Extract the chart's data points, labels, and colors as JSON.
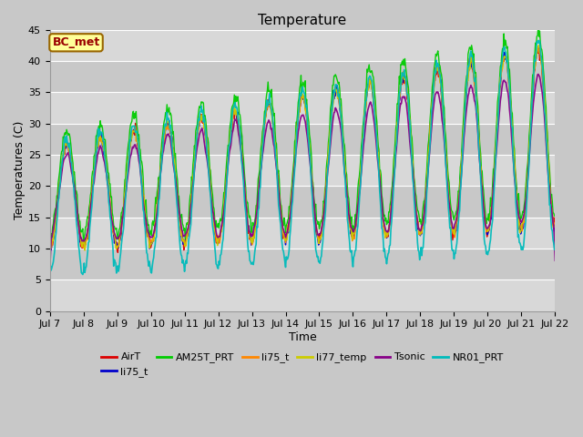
{
  "title": "Temperature",
  "xlabel": "Time",
  "ylabel": "Temperatures (C)",
  "annotation": "BC_met",
  "ylim": [
    0,
    45
  ],
  "x_tick_labels": [
    "Jul 7",
    "Jul 8",
    "Jul 9",
    "Jul 10",
    "Jul 11",
    "Jul 12",
    "Jul 13",
    "Jul 14",
    "Jul 15",
    "Jul 16",
    "Jul 17",
    "Jul 18",
    "Jul 19",
    "Jul 20",
    "Jul 21",
    "Jul 22"
  ],
  "x_tick_positions": [
    0,
    1,
    2,
    3,
    4,
    5,
    6,
    7,
    8,
    9,
    10,
    11,
    12,
    13,
    14,
    15
  ],
  "series": [
    {
      "label": "AirT",
      "color": "#dd0000",
      "lw": 1.0
    },
    {
      "label": "li75_t",
      "color": "#0000cc",
      "lw": 1.0
    },
    {
      "label": "AM25T_PRT",
      "color": "#00cc00",
      "lw": 1.0
    },
    {
      "label": "li75_t",
      "color": "#ff8800",
      "lw": 1.0
    },
    {
      "label": "li77_temp",
      "color": "#cccc00",
      "lw": 1.0
    },
    {
      "label": "Tsonic",
      "color": "#880088",
      "lw": 1.2
    },
    {
      "label": "NR01_PRT",
      "color": "#00bbbb",
      "lw": 1.2
    }
  ],
  "bg_color": "#c8c8c8",
  "plot_bg_color": "#c8c8c8",
  "grid_color": "#aaaaaa",
  "stripe_color": "#d8d8d8",
  "annotation_bg": "#ffff99",
  "annotation_border": "#996600",
  "annotation_text_color": "#990000",
  "title_fontsize": 11,
  "axis_label_fontsize": 9,
  "tick_fontsize": 8,
  "legend_fontsize": 8
}
